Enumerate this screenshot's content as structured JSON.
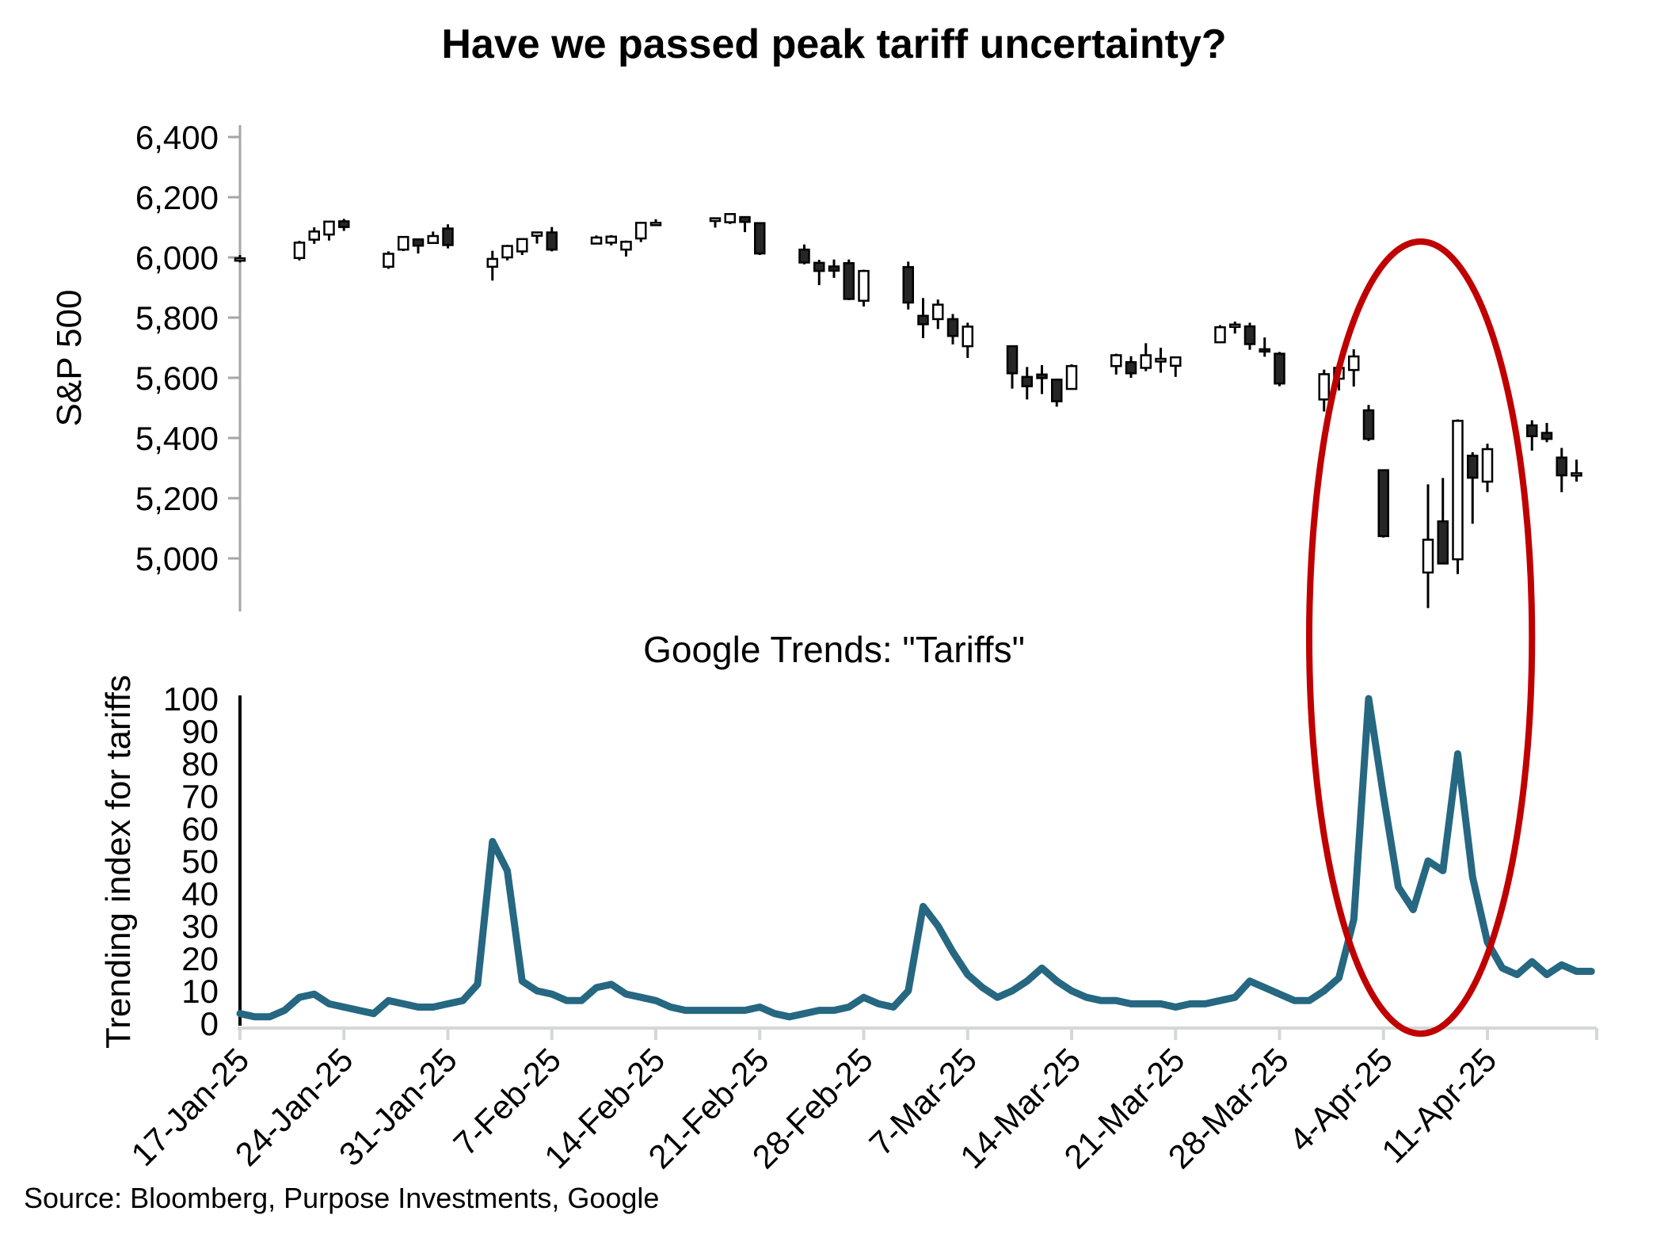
{
  "title": "Have we passed peak tariff uncertainty?",
  "source": "Source: Bloomberg, Purpose Investments, Google",
  "colors": {
    "trend_line": "#266781",
    "candle_up_fill": "#ffffff",
    "candle_down_fill": "#262626",
    "candle_stroke": "#000000",
    "annotation": "#c00000",
    "axis_gray": "#a6a6a6",
    "axis_light_gray": "#d4d7d8",
    "bottom_y_axis": "#000000"
  },
  "x_axis": {
    "ticks": [
      {
        "date": "2025-01-17",
        "label": "17-Jan-25"
      },
      {
        "date": "2025-01-24",
        "label": "24-Jan-25"
      },
      {
        "date": "2025-01-31",
        "label": "31-Jan-25"
      },
      {
        "date": "2025-02-07",
        "label": "7-Feb-25"
      },
      {
        "date": "2025-02-14",
        "label": "14-Feb-25"
      },
      {
        "date": "2025-02-21",
        "label": "21-Feb-25"
      },
      {
        "date": "2025-02-28",
        "label": "28-Feb-25"
      },
      {
        "date": "2025-03-07",
        "label": "7-Mar-25"
      },
      {
        "date": "2025-03-14",
        "label": "14-Mar-25"
      },
      {
        "date": "2025-03-21",
        "label": "21-Mar-25"
      },
      {
        "date": "2025-03-28",
        "label": "28-Mar-25"
      },
      {
        "date": "2025-04-04",
        "label": "4-Apr-25"
      },
      {
        "date": "2025-04-11",
        "label": "11-Apr-25"
      }
    ]
  },
  "chart_data": [
    {
      "type": "candlestick",
      "name": "S&P 500 daily OHLC",
      "title": "",
      "ylabel": "S&P 500",
      "ylim": [
        4800,
        6400
      ],
      "yticks": [
        {
          "v": 6400,
          "label": "6,400"
        },
        {
          "v": 6200,
          "label": "6,200"
        },
        {
          "v": 6000,
          "label": "6,000"
        },
        {
          "v": 5800,
          "label": "5,800"
        },
        {
          "v": 5600,
          "label": "5,600"
        },
        {
          "v": 5400,
          "label": "5,400"
        },
        {
          "v": 5200,
          "label": "5,200"
        },
        {
          "v": 5000,
          "label": "5,000"
        }
      ],
      "points": [
        [
          "2025-01-17",
          5994,
          6008,
          5983,
          5997
        ],
        [
          "2025-01-21",
          5998,
          6055,
          5990,
          6049
        ],
        [
          "2025-01-22",
          6059,
          6100,
          6045,
          6086
        ],
        [
          "2025-01-23",
          6076,
          6120,
          6056,
          6119
        ],
        [
          "2025-01-24",
          6120,
          6128,
          6088,
          6101
        ],
        [
          "2025-01-27",
          5969,
          6020,
          5962,
          6012
        ],
        [
          "2025-01-28",
          6026,
          6070,
          6021,
          6068
        ],
        [
          "2025-01-29",
          6060,
          6062,
          6013,
          6039
        ],
        [
          "2025-01-30",
          6048,
          6086,
          6046,
          6071
        ],
        [
          "2025-01-31",
          6096,
          6110,
          6030,
          6041
        ],
        [
          "2025-02-03",
          5969,
          6022,
          5923,
          5995
        ],
        [
          "2025-02-04",
          6000,
          6042,
          5990,
          6038
        ],
        [
          "2025-02-05",
          6020,
          6062,
          6008,
          6061
        ],
        [
          "2025-02-06",
          6072,
          6084,
          6046,
          6083
        ],
        [
          "2025-02-07",
          6083,
          6101,
          6020,
          6026
        ],
        [
          "2025-02-10",
          6046,
          6073,
          6044,
          6066
        ],
        [
          "2025-02-11",
          6049,
          6074,
          6040,
          6069
        ],
        [
          "2025-02-12",
          6026,
          6056,
          6003,
          6052
        ],
        [
          "2025-02-13",
          6063,
          6116,
          6051,
          6115
        ],
        [
          "2025-02-14",
          6115,
          6127,
          6107,
          6115
        ],
        [
          "2025-02-18",
          6121,
          6130,
          6099,
          6130
        ],
        [
          "2025-02-19",
          6117,
          6147,
          6111,
          6144
        ],
        [
          "2025-02-20",
          6134,
          6135,
          6084,
          6118
        ],
        [
          "2025-02-21",
          6114,
          6115,
          6008,
          6013
        ],
        [
          "2025-02-24",
          6026,
          6043,
          5977,
          5983
        ],
        [
          "2025-02-25",
          5982,
          5992,
          5908,
          5955
        ],
        [
          "2025-02-26",
          5970,
          5993,
          5932,
          5956
        ],
        [
          "2025-02-27",
          5981,
          5993,
          5858,
          5862
        ],
        [
          "2025-02-28",
          5856,
          5959,
          5837,
          5955
        ],
        [
          "2025-03-03",
          5968,
          5986,
          5827,
          5850
        ],
        [
          "2025-03-04",
          5806,
          5865,
          5732,
          5778
        ],
        [
          "2025-03-05",
          5795,
          5860,
          5762,
          5843
        ],
        [
          "2025-03-06",
          5795,
          5812,
          5711,
          5739
        ],
        [
          "2025-03-07",
          5705,
          5783,
          5666,
          5770
        ],
        [
          "2025-03-10",
          5705,
          5706,
          5564,
          5615
        ],
        [
          "2025-03-11",
          5603,
          5636,
          5528,
          5572
        ],
        [
          "2025-03-12",
          5611,
          5642,
          5546,
          5599
        ],
        [
          "2025-03-13",
          5594,
          5597,
          5504,
          5522
        ],
        [
          "2025-03-14",
          5563,
          5645,
          5563,
          5639
        ],
        [
          "2025-03-17",
          5639,
          5680,
          5611,
          5675
        ],
        [
          "2025-03-18",
          5652,
          5672,
          5600,
          5615
        ],
        [
          "2025-03-19",
          5633,
          5715,
          5622,
          5675
        ],
        [
          "2025-03-20",
          5654,
          5700,
          5617,
          5663
        ],
        [
          "2025-03-21",
          5640,
          5670,
          5603,
          5668
        ],
        [
          "2025-03-24",
          5718,
          5775,
          5718,
          5768
        ],
        [
          "2025-03-25",
          5776,
          5787,
          5747,
          5777
        ],
        [
          "2025-03-26",
          5771,
          5783,
          5693,
          5712
        ],
        [
          "2025-03-27",
          5695,
          5734,
          5670,
          5693
        ],
        [
          "2025-03-28",
          5680,
          5686,
          5572,
          5581
        ],
        [
          "2025-03-31",
          5528,
          5627,
          5488,
          5612
        ],
        [
          "2025-04-01",
          5597,
          5651,
          5558,
          5633
        ],
        [
          "2025-04-02",
          5626,
          5695,
          5571,
          5671
        ],
        [
          "2025-04-03",
          5492,
          5510,
          5390,
          5397
        ],
        [
          "2025-04-04",
          5293,
          5293,
          5069,
          5074
        ],
        [
          "2025-04-07",
          4953,
          5246,
          4835,
          5062
        ],
        [
          "2025-04-08",
          5123,
          5267,
          4982,
          4983
        ],
        [
          "2025-04-09",
          4997,
          5462,
          4948,
          5457
        ],
        [
          "2025-04-10",
          5341,
          5353,
          5115,
          5268
        ],
        [
          "2025-04-11",
          5255,
          5381,
          5220,
          5363
        ],
        [
          "2025-04-14",
          5442,
          5459,
          5358,
          5406
        ],
        [
          "2025-04-15",
          5417,
          5450,
          5386,
          5397
        ],
        [
          "2025-04-16",
          5335,
          5367,
          5220,
          5276
        ],
        [
          "2025-04-17",
          5281,
          5328,
          5255,
          5283
        ]
      ]
    },
    {
      "type": "line",
      "name": "Google Trends index for tariffs",
      "title": "Google Trends: \"Tariffs\"",
      "ylabel": "Trending index for tariffs",
      "ylim": [
        0,
        100
      ],
      "yticks": [
        100,
        90,
        80,
        70,
        60,
        50,
        40,
        30,
        20,
        10,
        0
      ],
      "start_date": "2025-01-17",
      "frequency": "daily",
      "values": [
        3,
        2,
        2,
        4,
        8,
        9,
        6,
        5,
        4,
        3,
        7,
        6,
        5,
        5,
        6,
        7,
        12,
        56,
        47,
        13,
        10,
        9,
        7,
        7,
        11,
        12,
        9,
        8,
        7,
        5,
        4,
        4,
        4,
        4,
        4,
        5,
        3,
        2,
        3,
        4,
        4,
        5,
        8,
        6,
        5,
        10,
        36,
        30,
        22,
        15,
        11,
        8,
        10,
        13,
        17,
        13,
        10,
        8,
        7,
        7,
        6,
        6,
        6,
        5,
        6,
        6,
        7,
        8,
        13,
        11,
        9,
        7,
        7,
        10,
        14,
        32,
        100,
        70,
        42,
        35,
        50,
        47,
        83,
        45,
        25,
        17,
        15,
        19,
        15,
        18,
        16,
        16
      ]
    }
  ],
  "annotation": {
    "shape": "ellipse",
    "color": "#c00000",
    "date_range": [
      "2025-03-30",
      "2025-04-14"
    ],
    "spans": "both panels"
  }
}
